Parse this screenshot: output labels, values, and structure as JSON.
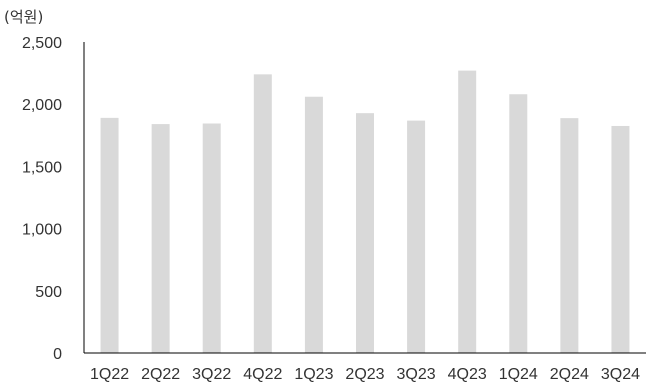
{
  "chart_data": {
    "type": "bar",
    "unit_label": "(억원)",
    "categories": [
      "1Q22",
      "2Q22",
      "3Q22",
      "4Q22",
      "1Q23",
      "2Q23",
      "3Q23",
      "4Q23",
      "1Q24",
      "2Q24",
      "3Q24"
    ],
    "values": [
      1890,
      1840,
      1845,
      2240,
      2060,
      1928,
      1868,
      2270,
      2080,
      1888,
      1825
    ],
    "ylim": [
      0,
      2500
    ],
    "yticks": [
      0,
      500,
      1000,
      1500,
      2000,
      2500
    ],
    "ytick_labels": [
      "0",
      "500",
      "1,000",
      "1,500",
      "2,000",
      "2,500"
    ],
    "bar_color": "#d9d9d9",
    "grid": false,
    "legend": "none"
  }
}
